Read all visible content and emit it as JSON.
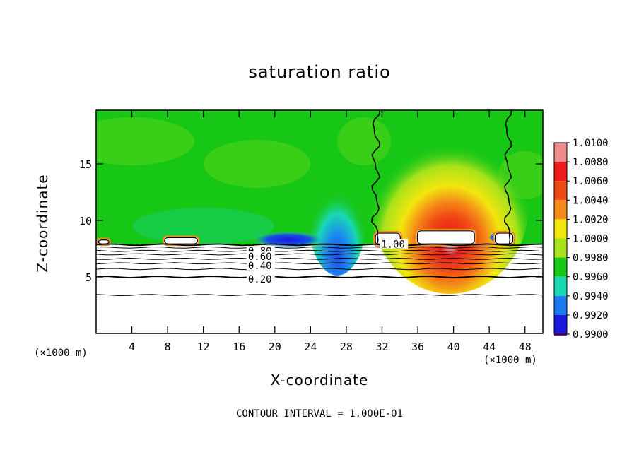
{
  "chart_data": {
    "type": "heatmap",
    "title": "saturation ratio",
    "xlabel": "X-coordinate",
    "ylabel": "Z-coordinate",
    "x_unit_label": "(×1000 m)",
    "footer": "CONTOUR INTERVAL = 1.000E-01",
    "x_range": [
      0,
      50
    ],
    "y_range": [
      0,
      19.75
    ],
    "x_ticks": [
      4,
      8,
      12,
      16,
      20,
      24,
      28,
      32,
      36,
      40,
      44,
      48
    ],
    "y_ticks": [
      5,
      10,
      15
    ],
    "colorbar": {
      "levels": [
        "1.0100",
        "1.0080",
        "1.0060",
        "1.0040",
        "1.0020",
        "1.0000",
        "0.9980",
        "0.9960",
        "0.9940",
        "0.9920",
        "0.9900"
      ],
      "colors": [
        "#ef8a8a",
        "#ee1c1c",
        "#f04a14",
        "#f58a18",
        "#f2e60e",
        "#a8e21a",
        "#16c716",
        "#1ad8b4",
        "#1a78f0",
        "#1a1adc",
        "#6a1aa8"
      ]
    },
    "contour_labels": [
      {
        "value": "0.80",
        "x": 17.0,
        "z": 7.3
      },
      {
        "value": "0.60",
        "x": 17.0,
        "z": 6.8
      },
      {
        "value": "0.40",
        "x": 17.0,
        "z": 6.0
      },
      {
        "value": "0.20",
        "x": 17.0,
        "z": 4.8
      },
      {
        "value": "1.00",
        "x": 31.9,
        "z": 7.9
      }
    ],
    "contour_levels_z": [
      7.85,
      7.6,
      7.3,
      7.0,
      6.6,
      6.2,
      5.7,
      5.0,
      3.4
    ],
    "saturated_regions": [
      {
        "x0": 0.1,
        "x1": 1.6,
        "z0": 7.8,
        "z1": 8.4
      },
      {
        "x0": 7.5,
        "x1": 11.5,
        "z0": 7.8,
        "z1": 8.6
      },
      {
        "x0": 31.1,
        "x1": 34.2,
        "z0": 7.7,
        "z1": 9.0
      },
      {
        "x0": 35.8,
        "x1": 42.5,
        "z0": 7.8,
        "z1": 9.2
      },
      {
        "x0": 44.5,
        "x1": 46.8,
        "z0": 7.8,
        "z1": 9.0
      }
    ]
  }
}
